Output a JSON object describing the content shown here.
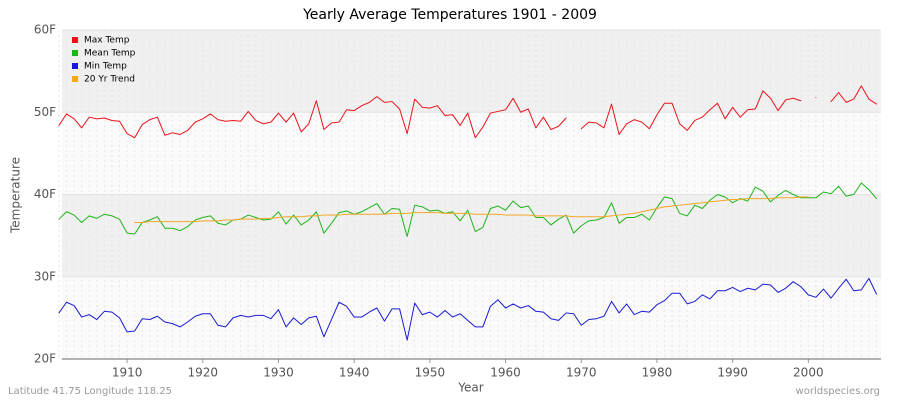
{
  "chart_data": {
    "type": "line",
    "title": "Yearly Average Temperatures 1901 - 2009",
    "x_label": "Year",
    "y_label": "Temperature",
    "footer_left": "Latitude 41.75 Longitude 118.25",
    "footer_right": "worldspecies.org",
    "x": [
      1901,
      1902,
      1903,
      1904,
      1905,
      1906,
      1907,
      1908,
      1909,
      1910,
      1911,
      1912,
      1913,
      1914,
      1915,
      1916,
      1917,
      1918,
      1919,
      1920,
      1921,
      1922,
      1923,
      1924,
      1925,
      1926,
      1927,
      1928,
      1929,
      1930,
      1931,
      1932,
      1933,
      1934,
      1935,
      1936,
      1937,
      1938,
      1939,
      1940,
      1941,
      1942,
      1943,
      1944,
      1945,
      1946,
      1947,
      1948,
      1949,
      1950,
      1951,
      1952,
      1953,
      1954,
      1955,
      1956,
      1957,
      1958,
      1959,
      1960,
      1961,
      1962,
      1963,
      1964,
      1965,
      1966,
      1967,
      1968,
      1969,
      1970,
      1971,
      1972,
      1973,
      1974,
      1975,
      1976,
      1977,
      1978,
      1979,
      1980,
      1981,
      1982,
      1983,
      1984,
      1985,
      1986,
      1987,
      1988,
      1989,
      1990,
      1991,
      1992,
      1993,
      1994,
      1995,
      1996,
      1997,
      1998,
      1999,
      2000,
      2001,
      2002,
      2003,
      2004,
      2005,
      2006,
      2007,
      2008,
      2009
    ],
    "series": [
      {
        "name": "Max Temp",
        "color": "#e8141b",
        "values": [
          48.4,
          49.8,
          49.2,
          48.1,
          49.4,
          49.2,
          49.3,
          49.0,
          48.9,
          47.4,
          46.9,
          48.5,
          49.1,
          49.4,
          47.2,
          47.5,
          47.3,
          47.8,
          48.8,
          49.2,
          49.8,
          49.1,
          48.9,
          49.0,
          48.9,
          50.1,
          49.0,
          48.6,
          48.8,
          49.9,
          48.8,
          49.9,
          47.6,
          48.6,
          51.4,
          47.9,
          48.7,
          48.8,
          50.3,
          50.2,
          50.8,
          51.2,
          51.9,
          51.2,
          51.3,
          50.4,
          47.4,
          51.6,
          50.6,
          50.5,
          50.8,
          49.6,
          49.7,
          48.4,
          49.9,
          46.9,
          48.2,
          49.9,
          50.1,
          50.3,
          51.7,
          50.0,
          50.4,
          48.1,
          49.4,
          47.9,
          48.3,
          49.3,
          null,
          48.0,
          48.8,
          48.7,
          48.1,
          51.0,
          47.3,
          48.6,
          49.1,
          48.8,
          48.0,
          49.7,
          51.1,
          51.1,
          48.6,
          47.8,
          49.0,
          49.4,
          50.3,
          51.1,
          49.2,
          50.6,
          49.4,
          50.3,
          50.4,
          52.6,
          51.7,
          50.2,
          51.5,
          51.7,
          51.4,
          null,
          51.8,
          null,
          51.3,
          52.4,
          51.2,
          51.6,
          53.2,
          51.6,
          51.0
        ]
      },
      {
        "name": "Mean Temp",
        "color": "#1fb51a",
        "values": [
          37.0,
          37.9,
          37.5,
          36.6,
          37.4,
          37.1,
          37.6,
          37.4,
          37.0,
          35.3,
          35.2,
          36.6,
          36.9,
          37.3,
          35.9,
          35.9,
          35.6,
          36.1,
          36.9,
          37.2,
          37.4,
          36.5,
          36.3,
          36.9,
          37.0,
          37.5,
          37.2,
          36.9,
          37.0,
          37.9,
          36.4,
          37.5,
          36.3,
          36.9,
          37.9,
          35.3,
          36.5,
          37.8,
          38.0,
          37.6,
          37.9,
          38.4,
          38.9,
          37.6,
          38.3,
          38.2,
          34.9,
          38.7,
          38.5,
          38.0,
          38.1,
          37.7,
          37.9,
          36.8,
          38.1,
          35.5,
          36.0,
          38.3,
          38.6,
          38.1,
          39.2,
          38.4,
          38.6,
          37.2,
          37.2,
          36.3,
          37.0,
          37.5,
          35.3,
          36.2,
          36.8,
          36.9,
          37.2,
          39.0,
          36.5,
          37.2,
          37.2,
          37.6,
          36.9,
          38.4,
          39.7,
          39.5,
          37.7,
          37.4,
          38.7,
          38.3,
          39.3,
          40.0,
          39.7,
          39.0,
          39.5,
          39.2,
          40.9,
          40.4,
          39.1,
          39.9,
          40.5,
          40.0,
          39.6,
          39.6,
          39.6,
          40.3,
          40.1,
          41.0,
          39.8,
          40.0,
          41.4,
          40.6,
          39.5
        ]
      },
      {
        "name": "Min Temp",
        "color": "#1a1ad6",
        "values": [
          25.6,
          26.9,
          26.5,
          25.1,
          25.4,
          24.8,
          25.8,
          25.7,
          25.0,
          23.3,
          23.4,
          24.9,
          24.8,
          25.2,
          24.5,
          24.3,
          23.9,
          24.5,
          25.2,
          25.5,
          25.5,
          24.1,
          23.9,
          25.0,
          25.3,
          25.1,
          25.3,
          25.3,
          24.9,
          26.0,
          23.9,
          25.0,
          24.2,
          25.0,
          25.2,
          22.7,
          24.8,
          26.9,
          26.4,
          25.1,
          25.1,
          25.7,
          26.2,
          24.6,
          26.1,
          26.1,
          22.3,
          26.8,
          25.4,
          25.7,
          25.1,
          25.9,
          25.1,
          25.5,
          24.7,
          23.9,
          23.9,
          26.4,
          27.2,
          26.2,
          26.7,
          26.2,
          26.5,
          25.8,
          25.7,
          24.9,
          24.7,
          25.6,
          25.5,
          24.1,
          24.8,
          24.9,
          25.2,
          27.0,
          25.6,
          26.7,
          25.4,
          25.8,
          25.7,
          26.6,
          27.1,
          28.0,
          28.0,
          26.7,
          27.0,
          27.8,
          27.3,
          28.3,
          28.3,
          28.7,
          28.2,
          28.6,
          28.4,
          29.1,
          29.0,
          28.1,
          28.6,
          29.4,
          28.8,
          27.8,
          27.5,
          28.5,
          27.4,
          28.6,
          29.7,
          28.3,
          28.4,
          29.8,
          27.9
        ]
      },
      {
        "name": "20 Yr Trend",
        "color": "#f5a623",
        "values": [
          null,
          null,
          null,
          null,
          null,
          null,
          null,
          null,
          null,
          null,
          36.6,
          36.6,
          36.7,
          36.7,
          36.7,
          36.7,
          36.7,
          36.7,
          36.7,
          36.8,
          36.8,
          36.8,
          36.9,
          36.9,
          37.0,
          37.0,
          37.0,
          37.1,
          37.1,
          37.2,
          37.3,
          37.3,
          37.3,
          37.4,
          37.4,
          37.5,
          37.5,
          37.5,
          37.6,
          37.6,
          37.6,
          37.6,
          37.6,
          37.6,
          37.7,
          37.7,
          37.7,
          37.8,
          37.8,
          37.8,
          37.8,
          37.7,
          37.7,
          37.7,
          37.7,
          37.6,
          37.6,
          37.6,
          37.6,
          37.5,
          37.5,
          37.5,
          37.5,
          37.4,
          37.4,
          37.4,
          37.4,
          37.4,
          37.3,
          37.3,
          37.3,
          37.3,
          37.3,
          37.4,
          37.5,
          37.6,
          37.7,
          37.9,
          38.1,
          38.3,
          38.5,
          38.6,
          38.7,
          38.8,
          38.9,
          39.0,
          39.1,
          39.2,
          39.3,
          39.4,
          39.4,
          39.5,
          39.5,
          39.5,
          39.5,
          39.6,
          39.6,
          39.6,
          39.7,
          39.7,
          null,
          null,
          null,
          null,
          null,
          null,
          null,
          null,
          null
        ]
      }
    ],
    "xlim": [
      1901.4,
      2009.6
    ],
    "xticks": [
      1910,
      1920,
      1930,
      1940,
      1950,
      1960,
      1970,
      1980,
      1990,
      2000
    ],
    "ylim": [
      20,
      60
    ],
    "yticks": [
      {
        "value": 20,
        "label": "20F"
      },
      {
        "value": 30,
        "label": "30F"
      },
      {
        "value": 40,
        "label": "40F"
      },
      {
        "value": 50,
        "label": "50F"
      },
      {
        "value": 60,
        "label": "60F"
      }
    ],
    "grid": true,
    "legend": "top-left"
  }
}
